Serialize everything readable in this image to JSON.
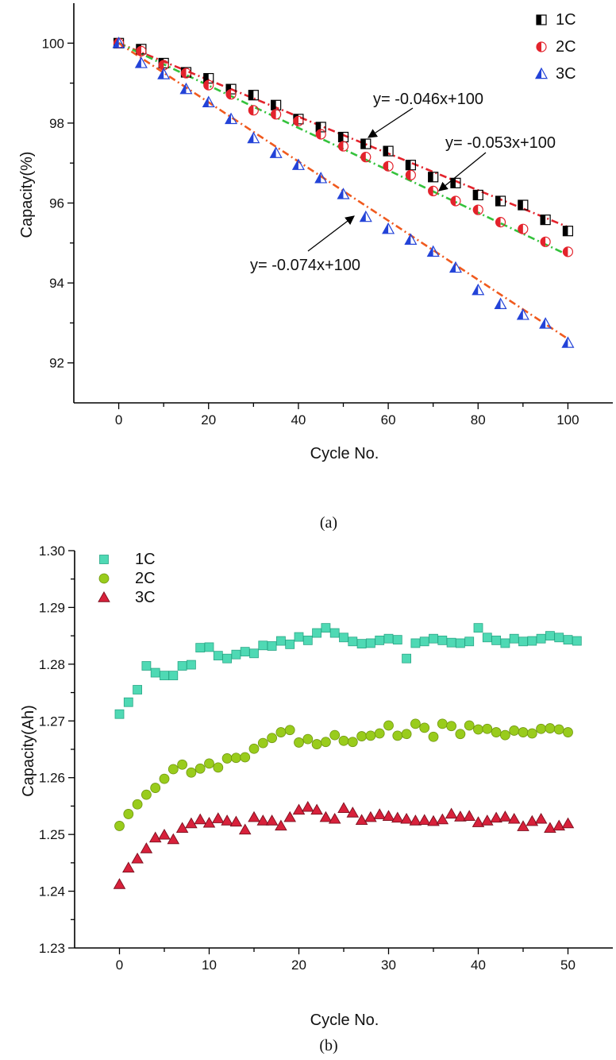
{
  "chart_data": [
    {
      "type": "scatter",
      "panel_label": "(a)",
      "xlabel": "Cycle No.",
      "ylabel": "Capacity(%)",
      "xlim": [
        -10,
        110
      ],
      "ylim": [
        91,
        101
      ],
      "xticks": [
        0,
        20,
        40,
        60,
        80,
        100
      ],
      "yticks": [
        92,
        94,
        96,
        98,
        100
      ],
      "legend_position": "top-right",
      "series": [
        {
          "name": "1C",
          "marker": "half-square",
          "color": "#000000",
          "x": [
            0,
            5,
            10,
            15,
            20,
            25,
            30,
            35,
            40,
            45,
            50,
            55,
            60,
            65,
            70,
            75,
            80,
            85,
            90,
            95,
            100
          ],
          "y": [
            100,
            99.85,
            99.5,
            99.27,
            99.12,
            98.85,
            98.7,
            98.45,
            98.1,
            97.9,
            97.65,
            97.48,
            97.3,
            96.95,
            96.65,
            96.5,
            96.2,
            96.05,
            95.95,
            95.58,
            95.3
          ]
        },
        {
          "name": "2C",
          "marker": "half-circle",
          "color": "#e3232c",
          "x": [
            0,
            5,
            10,
            15,
            20,
            25,
            30,
            35,
            40,
            45,
            50,
            55,
            60,
            65,
            70,
            75,
            80,
            85,
            90,
            95,
            100
          ],
          "y": [
            100,
            99.8,
            99.45,
            99.25,
            98.95,
            98.72,
            98.32,
            98.22,
            98.05,
            97.72,
            97.42,
            97.15,
            96.92,
            96.7,
            96.3,
            96.05,
            95.83,
            95.52,
            95.35,
            95.03,
            94.78
          ]
        },
        {
          "name": "3C",
          "marker": "half-triangle",
          "color": "#2343d8",
          "x": [
            0,
            5,
            10,
            15,
            20,
            25,
            30,
            35,
            40,
            45,
            50,
            55,
            60,
            65,
            70,
            75,
            80,
            85,
            90,
            95,
            100
          ],
          "y": [
            100,
            99.5,
            99.22,
            98.85,
            98.52,
            98.1,
            97.62,
            97.25,
            96.95,
            96.62,
            96.22,
            95.65,
            95.35,
            95.08,
            94.78,
            94.38,
            93.82,
            93.47,
            93.2,
            92.98,
            92.5
          ]
        }
      ],
      "fits": [
        {
          "label": "y= -0.046x+100",
          "slope": -0.046,
          "intercept": 100,
          "color": "#e3232c",
          "style": "dash-dot",
          "x_range": [
            0,
            100
          ]
        },
        {
          "label": "y= -0.053x+100",
          "slope": -0.053,
          "intercept": 100,
          "color": "#34c23c",
          "style": "dash-dot",
          "x_range": [
            0,
            100
          ]
        },
        {
          "label": "y= -0.074x+100",
          "slope": -0.074,
          "intercept": 100,
          "color": "#f05a1e",
          "style": "dash-dot",
          "x_range": [
            0,
            100
          ]
        }
      ]
    },
    {
      "type": "scatter",
      "panel_label": "(b)",
      "xlabel": "Cycle No.",
      "ylabel": "Capacity(Ah)",
      "xlim": [
        -5,
        55
      ],
      "ylim": [
        1.23,
        1.3
      ],
      "xticks": [
        0,
        10,
        20,
        30,
        40,
        50
      ],
      "yticks": [
        1.23,
        1.24,
        1.25,
        1.26,
        1.27,
        1.28,
        1.29,
        1.3
      ],
      "ytick_labels": [
        "1.23",
        "1.24",
        "1.25",
        "1.26",
        "1.27",
        "1.28",
        "1.29",
        "1.30"
      ],
      "legend_position": "top-left",
      "series": [
        {
          "name": "1C",
          "marker": "square",
          "color": "#4fd9b4",
          "x": [
            0,
            1,
            2,
            3,
            4,
            5,
            6,
            7,
            8,
            9,
            10,
            11,
            12,
            13,
            14,
            15,
            16,
            17,
            18,
            19,
            20,
            21,
            22,
            23,
            24,
            25,
            26,
            27,
            28,
            29,
            30,
            31,
            32,
            33,
            34,
            35,
            36,
            37,
            38,
            39,
            40,
            41,
            42,
            43,
            44,
            45,
            46,
            47,
            48,
            49,
            50,
            51
          ],
          "y": [
            1.2712,
            1.2733,
            1.2755,
            1.2797,
            1.2785,
            1.278,
            1.278,
            1.2797,
            1.2799,
            1.2829,
            1.283,
            1.2815,
            1.281,
            1.2817,
            1.2822,
            1.2819,
            1.2833,
            1.2832,
            1.2841,
            1.2835,
            1.2848,
            1.2842,
            1.2855,
            1.2864,
            1.2855,
            1.2847,
            1.284,
            1.2836,
            1.2837,
            1.2842,
            1.2845,
            1.2843,
            1.281,
            1.2837,
            1.284,
            1.2845,
            1.2842,
            1.2838,
            1.2837,
            1.284,
            1.2864,
            1.2847,
            1.2842,
            1.2837,
            1.2845,
            1.284,
            1.2841,
            1.2845,
            1.285,
            1.2847,
            1.2843,
            1.2841
          ]
        },
        {
          "name": "2C",
          "marker": "circle",
          "color": "#99cc1c",
          "x": [
            0,
            1,
            2,
            3,
            4,
            5,
            6,
            7,
            8,
            9,
            10,
            11,
            12,
            13,
            14,
            15,
            16,
            17,
            18,
            19,
            20,
            21,
            22,
            23,
            24,
            25,
            26,
            27,
            28,
            29,
            30,
            31,
            32,
            33,
            34,
            35,
            36,
            37,
            38,
            39,
            40,
            41,
            42,
            43,
            44,
            45,
            46,
            47,
            48,
            49,
            50
          ],
          "y": [
            1.2515,
            1.2536,
            1.2553,
            1.257,
            1.2582,
            1.2598,
            1.2615,
            1.2623,
            1.2609,
            1.2616,
            1.2625,
            1.2618,
            1.2634,
            1.2635,
            1.2636,
            1.2651,
            1.2661,
            1.267,
            1.268,
            1.2684,
            1.2662,
            1.2668,
            1.2659,
            1.2663,
            1.2675,
            1.2665,
            1.2663,
            1.2673,
            1.2674,
            1.2678,
            1.2692,
            1.2674,
            1.2677,
            1.2695,
            1.2688,
            1.2672,
            1.2695,
            1.2691,
            1.2677,
            1.2692,
            1.2685,
            1.2686,
            1.268,
            1.2675,
            1.2683,
            1.268,
            1.2678,
            1.2686,
            1.2687,
            1.2685,
            1.268
          ]
        },
        {
          "name": "3C",
          "marker": "triangle",
          "color": "#d8213b",
          "x": [
            0,
            1,
            2,
            3,
            4,
            5,
            6,
            7,
            8,
            9,
            10,
            11,
            12,
            13,
            14,
            15,
            16,
            17,
            18,
            19,
            20,
            21,
            22,
            23,
            24,
            25,
            26,
            27,
            28,
            29,
            30,
            31,
            32,
            33,
            34,
            35,
            36,
            37,
            38,
            39,
            40,
            41,
            42,
            43,
            44,
            45,
            46,
            47,
            48,
            49,
            50
          ],
          "y": [
            1.2412,
            1.2441,
            1.2457,
            1.2475,
            1.2494,
            1.2499,
            1.2491,
            1.2511,
            1.2519,
            1.2526,
            1.252,
            1.2528,
            1.2524,
            1.2522,
            1.2508,
            1.253,
            1.2524,
            1.2524,
            1.2515,
            1.253,
            1.2543,
            1.2548,
            1.2543,
            1.253,
            1.2527,
            1.2546,
            1.2538,
            1.2525,
            1.253,
            1.2535,
            1.2532,
            1.2529,
            1.2527,
            1.2524,
            1.2525,
            1.2523,
            1.2526,
            1.2536,
            1.2531,
            1.2532,
            1.2521,
            1.2524,
            1.2529,
            1.2531,
            1.2527,
            1.2514,
            1.2523,
            1.2527,
            1.2511,
            1.2515,
            1.2519
          ]
        }
      ]
    }
  ]
}
